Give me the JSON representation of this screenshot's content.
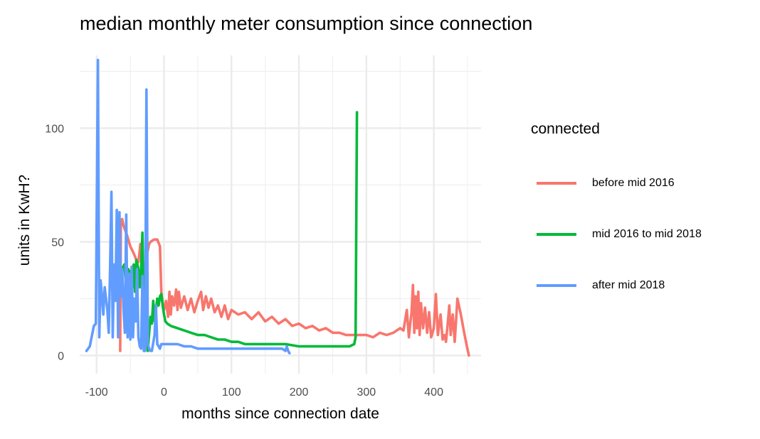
{
  "chart_data": {
    "type": "line",
    "title": "median monthly meter consumption since connection",
    "xlabel": "months since connection date",
    "ylabel": "units in KwH?",
    "xlim": [
      -125,
      470
    ],
    "ylim": [
      -8,
      132
    ],
    "x_ticks": [
      -100,
      0,
      100,
      200,
      300,
      400
    ],
    "x_tick_labels": [
      "-100",
      "0",
      "100",
      "200",
      "300",
      "400"
    ],
    "y_ticks": [
      0,
      50,
      100
    ],
    "y_tick_labels": [
      "0",
      "50",
      "100"
    ],
    "grid": true,
    "legend": {
      "title": "connected",
      "position": "right"
    },
    "series": [
      {
        "name": "before mid 2016",
        "color": "#F8766D",
        "points": [
          [
            -65,
            2
          ],
          [
            -64,
            58
          ],
          [
            -62,
            60
          ],
          [
            -60,
            57
          ],
          [
            -55,
            53
          ],
          [
            -50,
            48
          ],
          [
            -45,
            45
          ],
          [
            -41,
            42
          ],
          [
            -38,
            41
          ],
          [
            -35,
            49
          ],
          [
            -31,
            33
          ],
          [
            -28,
            40
          ],
          [
            -25,
            45
          ],
          [
            -22,
            49
          ],
          [
            -20,
            50
          ],
          [
            -15,
            51
          ],
          [
            -10,
            51
          ],
          [
            -6,
            48
          ],
          [
            -4,
            28
          ],
          [
            -2,
            23
          ],
          [
            0,
            20
          ],
          [
            3,
            24
          ],
          [
            6,
            17
          ],
          [
            8,
            28
          ],
          [
            10,
            18
          ],
          [
            12,
            26
          ],
          [
            15,
            22
          ],
          [
            18,
            29
          ],
          [
            20,
            20
          ],
          [
            22,
            28
          ],
          [
            25,
            21
          ],
          [
            30,
            26
          ],
          [
            35,
            20
          ],
          [
            40,
            25
          ],
          [
            45,
            19
          ],
          [
            50,
            24
          ],
          [
            55,
            28
          ],
          [
            58,
            20
          ],
          [
            62,
            26
          ],
          [
            66,
            21
          ],
          [
            70,
            25
          ],
          [
            75,
            19
          ],
          [
            80,
            22
          ],
          [
            85,
            17
          ],
          [
            90,
            22
          ],
          [
            95,
            16
          ],
          [
            100,
            20
          ],
          [
            110,
            18
          ],
          [
            120,
            19
          ],
          [
            130,
            16
          ],
          [
            140,
            19
          ],
          [
            150,
            15
          ],
          [
            160,
            17
          ],
          [
            170,
            14
          ],
          [
            180,
            16
          ],
          [
            190,
            13
          ],
          [
            200,
            14
          ],
          [
            210,
            12
          ],
          [
            220,
            13
          ],
          [
            230,
            11
          ],
          [
            240,
            12
          ],
          [
            250,
            10
          ],
          [
            260,
            10
          ],
          [
            270,
            9
          ],
          [
            280,
            9
          ],
          [
            290,
            9
          ],
          [
            300,
            9
          ],
          [
            310,
            8
          ],
          [
            320,
            10
          ],
          [
            330,
            9
          ],
          [
            340,
            10
          ],
          [
            350,
            12
          ],
          [
            355,
            11
          ],
          [
            360,
            20
          ],
          [
            363,
            8
          ],
          [
            365,
            14
          ],
          [
            367,
            19
          ],
          [
            369,
            31
          ],
          [
            371,
            10
          ],
          [
            373,
            26
          ],
          [
            375,
            12
          ],
          [
            377,
            28
          ],
          [
            379,
            9
          ],
          [
            381,
            23
          ],
          [
            384,
            12
          ],
          [
            387,
            21
          ],
          [
            390,
            10
          ],
          [
            393,
            19
          ],
          [
            396,
            8
          ],
          [
            400,
            12
          ],
          [
            403,
            27
          ],
          [
            406,
            9
          ],
          [
            410,
            18
          ],
          [
            413,
            7
          ],
          [
            416,
            9
          ],
          [
            418,
            6
          ],
          [
            420,
            12
          ],
          [
            423,
            22
          ],
          [
            425,
            9
          ],
          [
            428,
            18
          ],
          [
            431,
            6
          ],
          [
            435,
            25
          ],
          [
            440,
            18
          ],
          [
            445,
            10
          ],
          [
            449,
            4
          ],
          [
            452,
            0
          ]
        ]
      },
      {
        "name": "mid 2016 to mid 2018",
        "color": "#00BA38",
        "points": [
          [
            -64,
            27
          ],
          [
            -62,
            38
          ],
          [
            -59,
            40
          ],
          [
            -56,
            30
          ],
          [
            -53,
            38
          ],
          [
            -50,
            36
          ],
          [
            -47,
            30
          ],
          [
            -45,
            40
          ],
          [
            -43,
            28
          ],
          [
            -41,
            42
          ],
          [
            -38,
            38
          ],
          [
            -36,
            30
          ],
          [
            -34,
            38
          ],
          [
            -32,
            54
          ],
          [
            -30,
            16
          ],
          [
            -28,
            8
          ],
          [
            -26,
            20
          ],
          [
            -24,
            2
          ],
          [
            -22,
            10
          ],
          [
            -20,
            17
          ],
          [
            -18,
            14
          ],
          [
            -16,
            24
          ],
          [
            -14,
            15
          ],
          [
            -12,
            20
          ],
          [
            -10,
            25
          ],
          [
            -8,
            22
          ],
          [
            -6,
            26
          ],
          [
            -4,
            27
          ],
          [
            -2,
            22
          ],
          [
            0,
            18
          ],
          [
            2,
            15
          ],
          [
            5,
            14
          ],
          [
            10,
            13
          ],
          [
            20,
            12
          ],
          [
            30,
            11
          ],
          [
            40,
            10
          ],
          [
            50,
            9
          ],
          [
            60,
            9
          ],
          [
            70,
            8
          ],
          [
            80,
            7
          ],
          [
            90,
            7
          ],
          [
            100,
            6
          ],
          [
            110,
            6
          ],
          [
            120,
            5
          ],
          [
            140,
            5
          ],
          [
            160,
            5
          ],
          [
            180,
            5
          ],
          [
            200,
            4
          ],
          [
            220,
            4
          ],
          [
            240,
            4
          ],
          [
            260,
            4
          ],
          [
            275,
            4
          ],
          [
            282,
            5
          ],
          [
            284,
            8
          ],
          [
            286,
            107
          ]
        ]
      },
      {
        "name": "after mid 2018",
        "color": "#619CFF",
        "points": [
          [
            -115,
            2
          ],
          [
            -110,
            4
          ],
          [
            -104,
            13
          ],
          [
            -101,
            14
          ],
          [
            -98,
            130
          ],
          [
            -96,
            8
          ],
          [
            -94,
            33
          ],
          [
            -92,
            26
          ],
          [
            -90,
            18
          ],
          [
            -88,
            30
          ],
          [
            -86,
            25
          ],
          [
            -84,
            20
          ],
          [
            -82,
            10
          ],
          [
            -80,
            38
          ],
          [
            -78,
            72
          ],
          [
            -76,
            8
          ],
          [
            -74,
            40
          ],
          [
            -72,
            24
          ],
          [
            -70,
            64
          ],
          [
            -68,
            8
          ],
          [
            -66,
            63
          ],
          [
            -64,
            26
          ],
          [
            -62,
            38
          ],
          [
            -60,
            20
          ],
          [
            -58,
            10
          ],
          [
            -56,
            62
          ],
          [
            -54,
            8
          ],
          [
            -52,
            36
          ],
          [
            -50,
            7
          ],
          [
            -48,
            39
          ],
          [
            -46,
            8
          ],
          [
            -44,
            25
          ],
          [
            -42,
            15
          ],
          [
            -40,
            38
          ],
          [
            -38,
            8
          ],
          [
            -36,
            4
          ],
          [
            -34,
            3
          ],
          [
            -32,
            35
          ],
          [
            -30,
            2
          ],
          [
            -28,
            2
          ],
          [
            -26,
            117
          ],
          [
            -24,
            5
          ],
          [
            -22,
            3
          ],
          [
            -20,
            2
          ],
          [
            -18,
            2
          ],
          [
            -14,
            9
          ],
          [
            -12,
            22
          ],
          [
            -10,
            5
          ],
          [
            -8,
            4
          ],
          [
            -6,
            3
          ],
          [
            -4,
            5
          ],
          [
            0,
            5
          ],
          [
            10,
            5
          ],
          [
            20,
            5
          ],
          [
            30,
            4
          ],
          [
            40,
            4
          ],
          [
            50,
            3
          ],
          [
            60,
            3
          ],
          [
            80,
            3
          ],
          [
            100,
            3
          ],
          [
            120,
            3
          ],
          [
            140,
            3
          ],
          [
            160,
            3
          ],
          [
            175,
            3
          ],
          [
            180,
            2
          ],
          [
            182,
            4
          ],
          [
            184,
            2
          ],
          [
            186,
            1
          ]
        ]
      }
    ]
  }
}
